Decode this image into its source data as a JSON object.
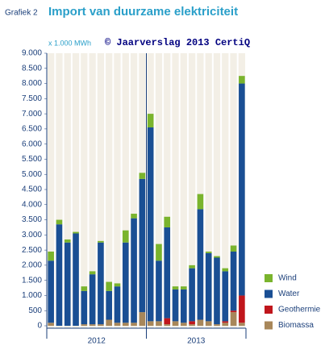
{
  "chart_data": {
    "type": "bar",
    "stacked": true,
    "label": "Grafiek 2",
    "title": "Import van duurzame elektriciteit",
    "y_label": "x 1.000 MWh",
    "source": "© Jaarverslag 2013 CertiQ",
    "categories": [
      null,
      null,
      null,
      null,
      null,
      null,
      null,
      null,
      null,
      null,
      null,
      null,
      null,
      null,
      null,
      null,
      null,
      null,
      null,
      null,
      null,
      null,
      null,
      null
    ],
    "x_groups": [
      "2012",
      "2013"
    ],
    "series": [
      {
        "name": "Biomassa",
        "color": "#a8875a",
        "values": [
          100,
          0,
          0,
          0,
          50,
          50,
          50,
          200,
          100,
          100,
          100,
          450,
          150,
          150,
          50,
          150,
          100,
          50,
          200,
          150,
          50,
          100,
          450,
          100
        ]
      },
      {
        "name": "Geothermie",
        "color": "#c0161c",
        "values": [
          0,
          0,
          0,
          0,
          0,
          0,
          0,
          0,
          0,
          0,
          0,
          0,
          0,
          0,
          200,
          0,
          0,
          100,
          0,
          0,
          0,
          50,
          50,
          900
        ]
      },
      {
        "name": "Water",
        "color": "#1a4f94",
        "values": [
          2050,
          3350,
          2750,
          3050,
          1100,
          1650,
          2700,
          950,
          1200,
          2650,
          3450,
          4400,
          6400,
          2000,
          3000,
          1050,
          1100,
          1750,
          3650,
          2250,
          2200,
          1650,
          1950,
          7000
        ]
      },
      {
        "name": "Wind",
        "color": "#7ab42d",
        "values": [
          300,
          150,
          100,
          50,
          150,
          100,
          50,
          300,
          100,
          400,
          150,
          200,
          450,
          550,
          350,
          100,
          100,
          100,
          500,
          50,
          50,
          100,
          200,
          250
        ]
      }
    ],
    "ylim": [
      0,
      9000
    ],
    "yticks": [
      0,
      {
        "value": 500,
        "label": "500"
      },
      {
        "value": 1000,
        "label": "1.000"
      },
      {
        "value": 1500,
        "label": "1.500"
      },
      {
        "value": 2000,
        "label": "2.000"
      },
      {
        "value": 2500,
        "label": "2.500"
      },
      {
        "value": 3000,
        "label": "3.000"
      },
      {
        "value": 3500,
        "label": "3.500"
      },
      {
        "value": 4000,
        "label": "4.000"
      },
      {
        "value": 4500,
        "label": "4.500"
      },
      {
        "value": 5000,
        "label": "5.000"
      },
      {
        "value": 5500,
        "label": "5.500"
      },
      {
        "value": 6000,
        "label": "6.000"
      },
      {
        "value": 6500,
        "label": "6.500"
      },
      {
        "value": 7000,
        "label": "7.000"
      },
      {
        "value": 7500,
        "label": "7.500"
      },
      {
        "value": 8000,
        "label": "8.000"
      },
      {
        "value": 8500,
        "label": "8.500"
      },
      {
        "value": 9000,
        "label": "9.000"
      }
    ]
  }
}
